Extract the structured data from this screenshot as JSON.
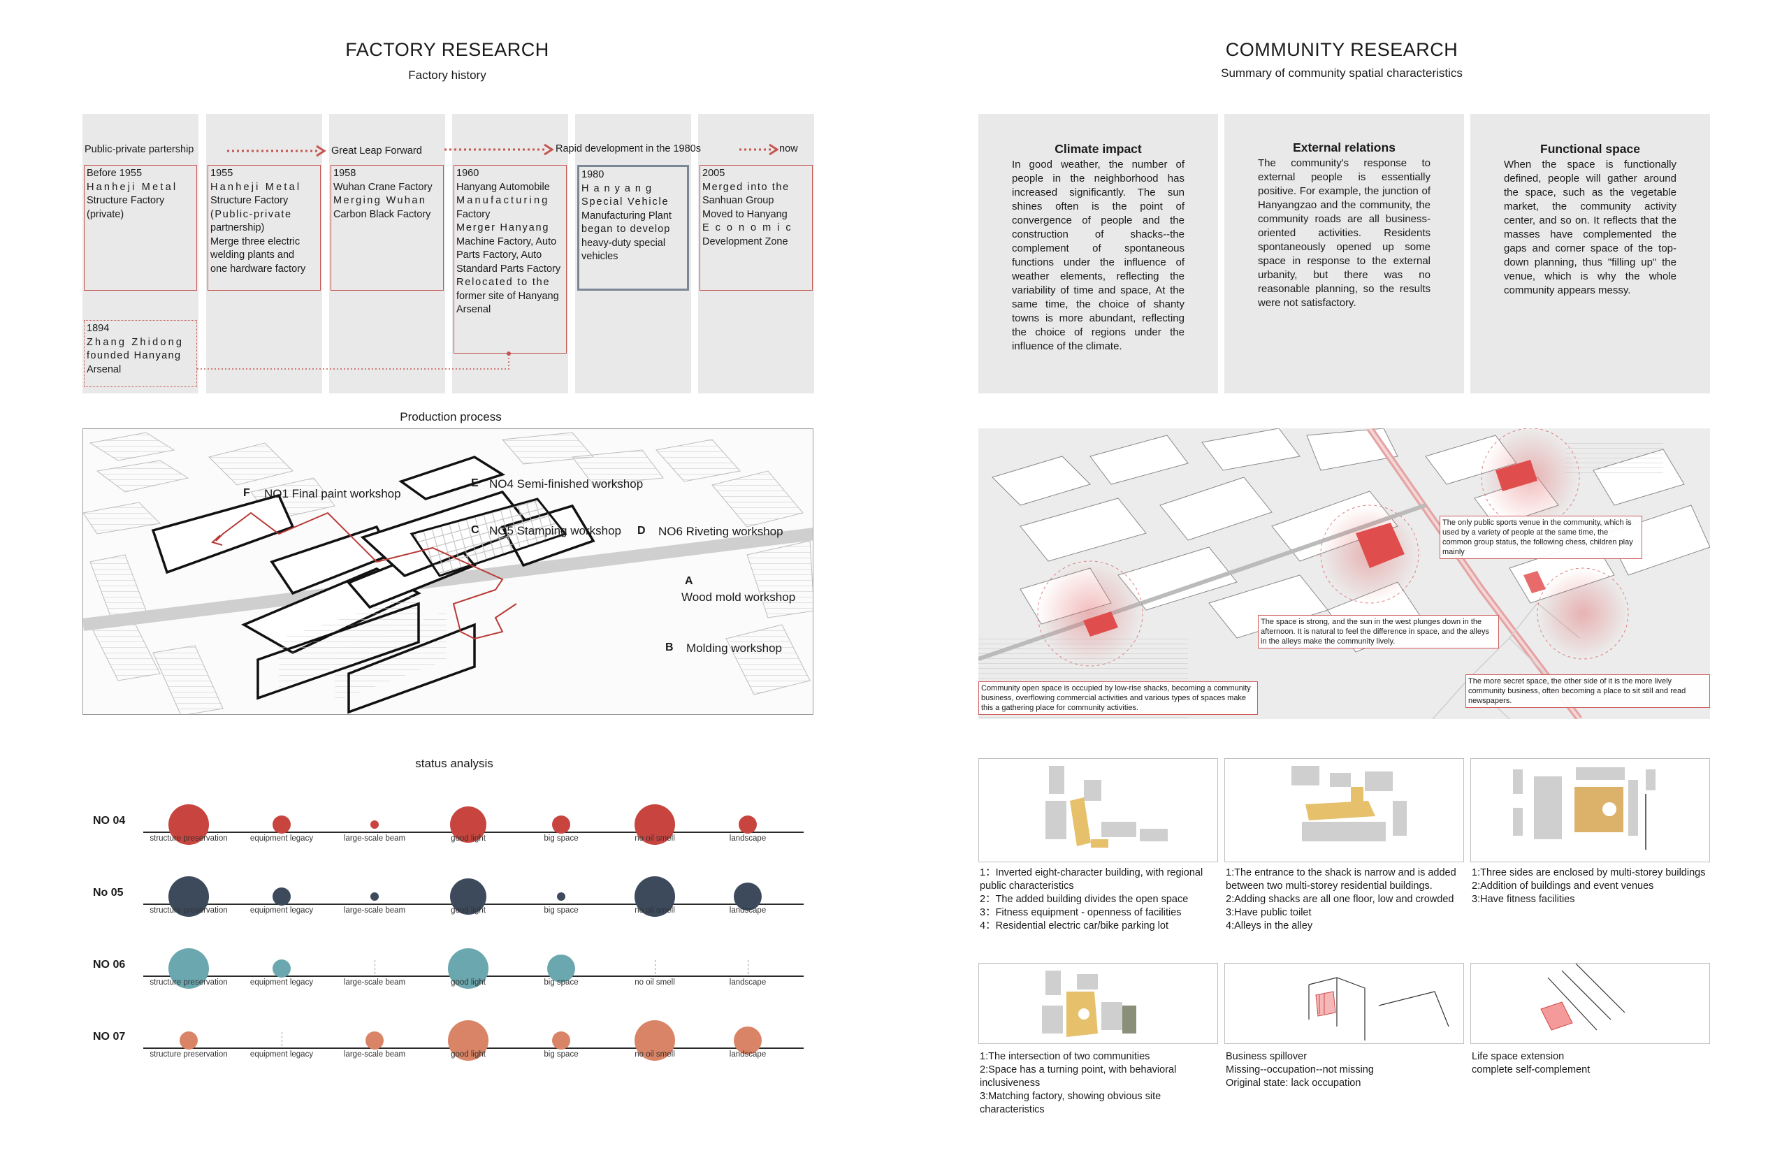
{
  "factory": {
    "title": "FACTORY RESEARCH",
    "history_subtitle": "Factory history",
    "timeline": {
      "labels": [
        "Public-private partership",
        "Great Leap Forward",
        "Rapid development in the 1980s",
        "now"
      ],
      "events": [
        {
          "year": "Before 1955",
          "lines": [
            "Hanheji Metal",
            "Structure Factory",
            "(private)"
          ]
        },
        {
          "year": "1955",
          "lines": [
            "Hanheji Metal",
            "Structure Factory",
            "(Public-private",
            "partnership)",
            "Merge three electric",
            "welding plants and",
            "one hardware factory"
          ]
        },
        {
          "year": "1958",
          "lines": [
            "Wuhan Crane Factory",
            "Merging Wuhan",
            "Carbon Black Factory"
          ]
        },
        {
          "year": "1960",
          "lines": [
            "Hanyang Automobile",
            "Manufacturing",
            "Factory",
            "Merger Hanyang",
            "Machine Factory, Auto",
            "Parts Factory, Auto",
            "Standard Parts Factory",
            "Relocated to the",
            "former site of Hanyang",
            "Arsenal"
          ]
        },
        {
          "year": "1980",
          "lines": [
            "Hanyang",
            "Special Vehicle",
            "Manufacturing Plant",
            "began to develop",
            "heavy-duty special",
            "vehicles"
          ]
        },
        {
          "year": "2005",
          "lines": [
            "Merged into the",
            "Sanhuan Group",
            "Moved to Hanyang",
            "Economic",
            "Development Zone"
          ]
        },
        {
          "year": "1894",
          "lines": [
            "Zhang Zhidong",
            "founded Hanyang",
            "Arsenal"
          ]
        }
      ]
    },
    "production": {
      "title": "Production process",
      "workshops": [
        {
          "letter": "F",
          "label": "NO1 Final paint workshop"
        },
        {
          "letter": "E",
          "label": "NO4 Semi-finished workshop"
        },
        {
          "letter": "C",
          "label": "NO5 Stamping workshop"
        },
        {
          "letter": "D",
          "label": "NO6 Riveting workshop"
        },
        {
          "letter": "A",
          "label": "Wood mold workshop"
        },
        {
          "letter": "B",
          "label": "Molding workshop"
        }
      ]
    },
    "status": {
      "title": "status analysis",
      "categories": [
        "structure preservation",
        "equipment legacy",
        "large-scale beam",
        "good light",
        "big space",
        "no oil smell",
        "landscape"
      ],
      "rows": [
        {
          "name": "NO 04",
          "color": "#c8453f",
          "values": [
            5,
            2,
            1,
            4,
            2,
            5,
            2
          ]
        },
        {
          "name": "No 05",
          "color": "#3c4a5c",
          "values": [
            5,
            2,
            1,
            4,
            1,
            5,
            3
          ]
        },
        {
          "name": "NO 06",
          "color": "#6ba7ae",
          "values": [
            5,
            2,
            0,
            5,
            3,
            0,
            0
          ]
        },
        {
          "name": "NO 07",
          "color": "#d98466",
          "values": [
            2,
            0,
            2,
            5,
            2,
            5,
            3
          ]
        }
      ]
    }
  },
  "community": {
    "title": "COMMUNITY RESEARCH",
    "subtitle": "Summary of community spatial characteristics",
    "cards": [
      {
        "title": "Climate impact",
        "text": "In good weather, the number of people in the neighborhood has increased significantly. The sun shines often is the point of convergence of people and the construction of shacks--the complement of spontaneous functions under the influence of weather elements, reflecting the variability of time and space, At the same time, the choice of shanty towns is more abundant, reflecting the choice of regions under the influence of the climate."
      },
      {
        "title": "External relations",
        "text": "The community's response to external people is essentially positive. For example, the junction of Hanyangzao and the community, the community roads are all business-oriented activities. Residents spontaneously opened up some space in response to the external urbanity, but there was no reasonable planning, so the results were not satisfactory."
      },
      {
        "title": "Functional space",
        "text": "When the space is functionally defined, people will gather around the space, such as the vegetable market, the community activity center, and so on. It reflects that the masses have complemented the gaps and corner space of the top-down planning, thus \"filling up\" the venue, which is why the whole community appears messy."
      }
    ],
    "notes": [
      "The only public sports venue in the community, which is used by a variety of people at the same time, the common group status, the following chess, children play mainly",
      "The space is strong, and the sun in the west plunges down in the afternoon. It is natural to feel the difference in space, and the alleys in the alleys make the community lively.",
      "Community open space is occupied by low-rise shacks, becoming a community business, overflowing commercial activities and various types of spaces make this a gathering place for community activities.",
      "The more secret space, the other side of it is the more lively community business, often becoming a place to sit still and read newspapers."
    ],
    "captions": [
      [
        "1：Inverted eight-character building, with regional public characteristics",
        "2：The added building divides the open space",
        "3：Fitness equipment - openness of facilities",
        "4：Residential electric car/bike parking lot"
      ],
      [
        "1:The entrance to the shack is narrow and is added between two multi-storey residential buildings.",
        "2:Adding shacks are all one floor, low and crowded",
        "3:Have public toilet",
        "4:Alleys in the alley"
      ],
      [
        "1:Three sides are enclosed by multi-storey buildings",
        "2:Addition of buildings and event venues",
        "3:Have fitness facilities"
      ],
      [
        "1:The intersection of two communities",
        "2:Space has a turning point, with behavioral inclusiveness",
        "3:Matching factory, showing obvious site characteristics"
      ],
      [
        "Business spillover",
        "Missing--occupation--not missing",
        "Original state: lack  occupation"
      ],
      [
        "Life space extension",
        "complete self-complement"
      ]
    ]
  }
}
